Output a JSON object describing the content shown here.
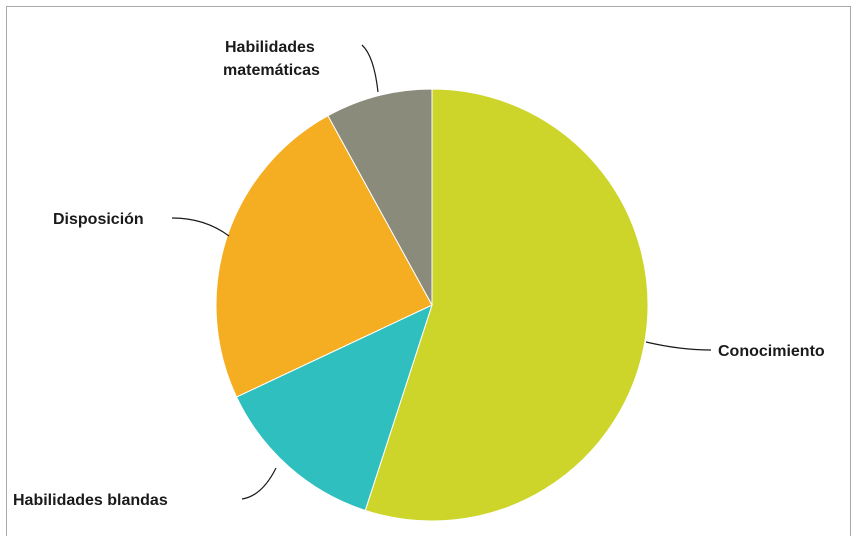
{
  "chart_data": {
    "type": "pie",
    "title": "",
    "slices": [
      {
        "label": "Conocimiento",
        "value": 55,
        "color": "#cdd52b"
      },
      {
        "label": "Habilidades blandas",
        "value": 13,
        "color": "#2ebfbe"
      },
      {
        "label": "Disposición",
        "value": 24,
        "color": "#f5ad22"
      },
      {
        "label": "Habilidades matemáticas",
        "value": 8,
        "color": "#8b8b7b"
      }
    ],
    "legend": "none",
    "label_lines": {
      "Habilidades matemáticas": [
        "Habilidades",
        "matemáticas"
      ]
    }
  }
}
